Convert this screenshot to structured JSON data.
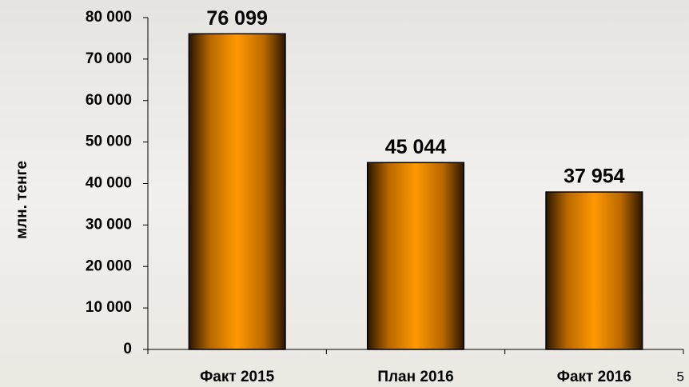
{
  "chart_data": {
    "type": "bar",
    "y_label": "млн. тенге",
    "categories": [
      "Факт 2015",
      "План 2016",
      "Факт 2016"
    ],
    "values": [
      76099,
      45044,
      37954
    ],
    "value_labels": [
      "76 099",
      "45 044",
      "37 954"
    ],
    "color": "#ff9900",
    "ylim": [
      0,
      80000
    ],
    "yticks": [
      0,
      {
        "value": 10000,
        "label": "10 000"
      },
      {
        "value": 20000,
        "label": "20 000"
      },
      {
        "value": 30000,
        "label": "30 000"
      },
      {
        "value": 40000,
        "label": "40 000"
      },
      {
        "value": 50000,
        "label": "50 000"
      },
      {
        "value": 60000,
        "label": "60 000"
      },
      {
        "value": 70000,
        "label": "70 000"
      },
      {
        "value": 80000,
        "label": "80 000"
      }
    ],
    "grid": false,
    "annotation": "5"
  }
}
